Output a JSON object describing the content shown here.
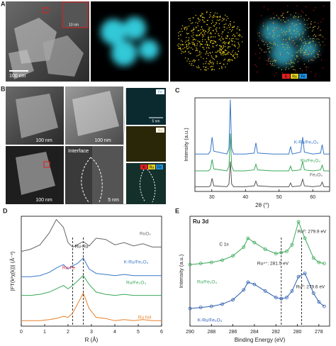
{
  "figure": {
    "panels": [
      "A",
      "B",
      "C",
      "D",
      "E"
    ]
  },
  "images": {
    "a_scale": "100 nm",
    "a_inset_scale": "10 nm",
    "a_legend": [
      "K",
      "Ru",
      "Fe"
    ],
    "a_legend_colors": [
      "#e02020",
      "#e8d020",
      "#2090e0"
    ],
    "b_scales": [
      "100 nm",
      "100 nm",
      "100 nm",
      "5 nm"
    ],
    "b_interface": "Interface",
    "b_map_labels": [
      "Fe",
      "Ru"
    ],
    "b_map_scale": "5 nm",
    "b_merged_legend": [
      "K",
      "Ru",
      "Fe"
    ]
  },
  "chart_data": [
    {
      "type": "line",
      "xlabel": "2θ (°)",
      "ylabel": "Intensity (a.u.)",
      "xlim": [
        25,
        65
      ],
      "xticks": [
        30,
        40,
        50,
        60
      ],
      "ylim": [
        0,
        100
      ],
      "x": [
        25,
        29,
        29.6,
        30.1,
        30.6,
        34.5,
        35.1,
        35.5,
        35.9,
        36.5,
        40,
        42.6,
        43.1,
        43.6,
        48,
        52.9,
        53.4,
        53.9,
        56.4,
        57,
        57.5,
        60,
        62.3,
        62.8,
        63.3,
        65
      ],
      "series": [
        {
          "name": "K-Ru/Fe₃O₄",
          "color": "#3a78c8",
          "values": [
            40,
            40,
            43,
            58,
            43,
            40,
            46,
            98,
            46,
            40,
            40,
            41,
            52,
            41,
            40,
            40,
            48,
            40,
            42,
            58,
            42,
            40,
            41,
            50,
            40,
            40
          ]
        },
        {
          "name": "Ru/Fe₃O₄",
          "color": "#3aa85a",
          "values": [
            22,
            22,
            24,
            34,
            24,
            22,
            27,
            62,
            27,
            22,
            22,
            23,
            29,
            23,
            22,
            22,
            27,
            22,
            23,
            32,
            23,
            22,
            23,
            28,
            22,
            22
          ]
        },
        {
          "name": "Fe₃O₄",
          "color": "#555555",
          "values": [
            5,
            5,
            6,
            14,
            6,
            5,
            8,
            32,
            8,
            5,
            5,
            6,
            11,
            6,
            5,
            5,
            9,
            5,
            6,
            13,
            6,
            5,
            6,
            10,
            5,
            5
          ]
        }
      ]
    },
    {
      "type": "line",
      "xlabel": "R (Å)",
      "ylabel": "|FT(k²χ(k))| (Å⁻³)",
      "xlim": [
        0,
        6
      ],
      "xticks": [
        0,
        1,
        2,
        3,
        4,
        5,
        6
      ],
      "ylim": [
        0,
        100
      ],
      "x": [
        0,
        0.4,
        0.8,
        1.2,
        1.5,
        1.8,
        2.0,
        2.2,
        2.4,
        2.65,
        2.9,
        3.2,
        3.6,
        4.0,
        4.4,
        4.8,
        5.2,
        5.6,
        6.0
      ],
      "vlines": [
        2.2,
        2.65
      ],
      "annotations": [
        {
          "text": "Ru-Ru",
          "color": "#222222"
        },
        {
          "text": "Ru-Fe",
          "color": "#e0203a"
        }
      ],
      "series": [
        {
          "name": "RuO₂",
          "color": "#666666",
          "values": [
            68,
            70,
            74,
            85,
            97,
            90,
            76,
            72,
            74,
            77,
            73,
            80,
            79,
            74,
            76,
            73,
            75,
            72,
            72
          ]
        },
        {
          "name": "K-Ru/Fe₃O₄",
          "color": "#3a78c8",
          "values": [
            45,
            45,
            46,
            49,
            53,
            56,
            52,
            55,
            57,
            62,
            52,
            48,
            47,
            46,
            47,
            46,
            46,
            46,
            46
          ]
        },
        {
          "name": "Ru/Fe₃O₄",
          "color": "#3aa85a",
          "values": [
            28,
            28,
            29,
            31,
            34,
            37,
            34,
            37,
            41,
            46,
            38,
            31,
            29,
            28,
            29,
            28,
            28,
            28,
            28
          ]
        },
        {
          "name": "Ru foil",
          "color": "#e8802a",
          "values": [
            5,
            5,
            5,
            6,
            7,
            9,
            8,
            12,
            20,
            30,
            16,
            8,
            7,
            5,
            6,
            5,
            6,
            5,
            5
          ]
        }
      ]
    },
    {
      "type": "line",
      "title": "Ru 3d",
      "xlabel": "Binding Energy (eV)",
      "ylabel": "Intensity (a.u.)",
      "xlim": [
        290,
        277
      ],
      "xticks": [
        290,
        288,
        286,
        284,
        282,
        280,
        278
      ],
      "ylim": [
        0,
        100
      ],
      "markers": true,
      "x": [
        290,
        289,
        288,
        287,
        286,
        285,
        284.6,
        284,
        283,
        282,
        281.5,
        281,
        280.5,
        279.9,
        279.3,
        278.5,
        278,
        277.5
      ],
      "vlines": [
        281.5,
        279.6
      ],
      "annotations": [
        {
          "text": "C 1s",
          "color": "#222222"
        },
        {
          "text": "Ru⁴⁺: 281.5 eV",
          "color": "#222222"
        },
        {
          "text": "Ru⁰: 279.9 eV",
          "color": "#222222"
        },
        {
          "text": "Ru⁰: 279.6 eV",
          "color": "#222222"
        }
      ],
      "series": [
        {
          "name": "Ru/Fe₃O₄",
          "color": "#3aa85a",
          "values": [
            56,
            57,
            58,
            60,
            64,
            72,
            80,
            76,
            70,
            66,
            67,
            68,
            74,
            95,
            80,
            62,
            58,
            57
          ]
        },
        {
          "name": "K-Ru/Fe₃O₄",
          "color": "#2f5fb0",
          "values": [
            16,
            17,
            18,
            20,
            24,
            33,
            40,
            38,
            32,
            26,
            25,
            26,
            32,
            45,
            48,
            30,
            22,
            18
          ]
        }
      ]
    }
  ]
}
